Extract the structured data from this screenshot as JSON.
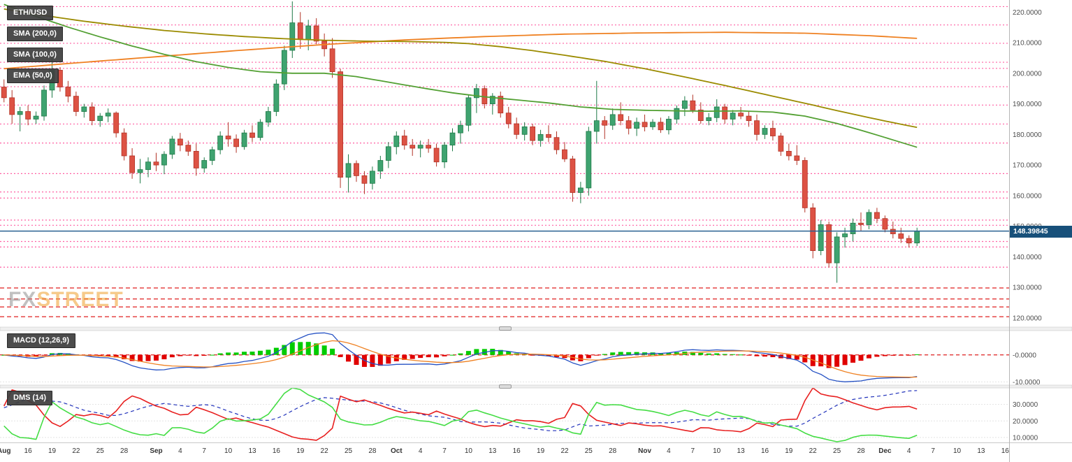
{
  "watermark": {
    "part1": "FX",
    "part2": "STREET"
  },
  "legend": [
    {
      "label": "ETH/USD"
    },
    {
      "label": "SMA (200,0)"
    },
    {
      "label": "SMA (100,0)"
    },
    {
      "label": "EMA (50,0)"
    }
  ],
  "indicator_labels": {
    "macd": "MACD (12,26,9)",
    "dms": "DMS (14)"
  },
  "price_label": "148.39845",
  "colors": {
    "candle_up": "#3fa370",
    "candle_up_border": "#1e7a47",
    "candle_down": "#dd5244",
    "candle_down_border": "#b23326",
    "price_line": "#2a6191",
    "price_label_bg": "#17507a",
    "pivot_pink": "#ff5fa2",
    "support_red": "#e02020"
  },
  "chart_data": [
    {
      "type": "candlestick",
      "symbol": "ETH/USD",
      "current_price": 148.39845,
      "ylim": [
        117,
        223.5
      ],
      "x_slots": 126,
      "y_axis_ticks": [
        "220.0000",
        "210.0000",
        "200.0000",
        "190.0000",
        "180.0000",
        "170.0000",
        "160.0000",
        "150.0000",
        "140.0000",
        "130.0000",
        "120.0000"
      ],
      "x_ticks": [
        [
          0,
          "Aug"
        ],
        [
          3,
          "16"
        ],
        [
          6,
          "19"
        ],
        [
          9,
          "22"
        ],
        [
          12,
          "25"
        ],
        [
          15,
          "28"
        ],
        [
          19,
          "Sep"
        ],
        [
          22,
          "4"
        ],
        [
          25,
          "7"
        ],
        [
          28,
          "10"
        ],
        [
          31,
          "13"
        ],
        [
          34,
          "16"
        ],
        [
          37,
          "19"
        ],
        [
          40,
          "22"
        ],
        [
          43,
          "25"
        ],
        [
          46,
          "28"
        ],
        [
          49,
          "Oct"
        ],
        [
          52,
          "4"
        ],
        [
          55,
          "7"
        ],
        [
          58,
          "10"
        ],
        [
          61,
          "13"
        ],
        [
          64,
          "16"
        ],
        [
          67,
          "19"
        ],
        [
          70,
          "22"
        ],
        [
          73,
          "25"
        ],
        [
          76,
          "28"
        ],
        [
          80,
          "Nov"
        ],
        [
          83,
          "4"
        ],
        [
          86,
          "7"
        ],
        [
          89,
          "10"
        ],
        [
          92,
          "13"
        ],
        [
          95,
          "16"
        ],
        [
          98,
          "19"
        ],
        [
          101,
          "22"
        ],
        [
          104,
          "25"
        ],
        [
          107,
          "28"
        ],
        [
          110,
          "Dec"
        ],
        [
          113,
          "4"
        ],
        [
          116,
          "7"
        ],
        [
          119,
          "10"
        ],
        [
          122,
          "13"
        ],
        [
          125,
          "16"
        ]
      ],
      "candles": [
        [
          195.5,
          198.0,
          190.5,
          192.0
        ],
        [
          192.0,
          194.5,
          183.5,
          186.5
        ],
        [
          186.5,
          189.0,
          181.0,
          187.5
        ],
        [
          187.5,
          189.5,
          183.0,
          185.0
        ],
        [
          185.0,
          187.5,
          183.5,
          186.0
        ],
        [
          186.0,
          196.0,
          184.5,
          194.5
        ],
        [
          194.5,
          205.0,
          192.0,
          201.0
        ],
        [
          201.0,
          202.0,
          194.0,
          195.5
        ],
        [
          195.5,
          197.5,
          190.5,
          192.5
        ],
        [
          192.5,
          194.0,
          186.0,
          187.5
        ],
        [
          187.5,
          190.0,
          185.5,
          189.0
        ],
        [
          189.0,
          190.5,
          183.0,
          184.5
        ],
        [
          184.5,
          187.0,
          182.5,
          186.0
        ],
        [
          186.0,
          188.5,
          184.0,
          187.0
        ],
        [
          187.0,
          187.5,
          179.0,
          180.5
        ],
        [
          180.5,
          182.0,
          171.5,
          173.0
        ],
        [
          173.0,
          175.5,
          165.5,
          167.5
        ],
        [
          167.5,
          172.0,
          164.0,
          168.5
        ],
        [
          168.5,
          172.5,
          166.0,
          171.0
        ],
        [
          171.0,
          174.0,
          168.0,
          170.0
        ],
        [
          170.0,
          174.5,
          167.0,
          173.5
        ],
        [
          173.5,
          179.5,
          172.0,
          178.5
        ],
        [
          178.5,
          180.5,
          174.5,
          176.5
        ],
        [
          176.5,
          178.0,
          173.0,
          174.5
        ],
        [
          174.5,
          177.0,
          166.5,
          169.0
        ],
        [
          169.0,
          172.5,
          167.5,
          171.5
        ],
        [
          171.5,
          176.0,
          170.0,
          175.0
        ],
        [
          175.0,
          181.0,
          173.5,
          179.5
        ],
        [
          179.5,
          184.0,
          176.0,
          178.5
        ],
        [
          178.5,
          180.0,
          174.0,
          176.0
        ],
        [
          176.0,
          181.5,
          175.0,
          180.5
        ],
        [
          180.5,
          183.0,
          177.5,
          179.0
        ],
        [
          179.0,
          185.0,
          178.0,
          184.0
        ],
        [
          184.0,
          189.0,
          182.5,
          187.5
        ],
        [
          187.5,
          198.0,
          186.0,
          196.5
        ],
        [
          196.5,
          209.0,
          194.5,
          207.5
        ],
        [
          207.5,
          223.5,
          205.0,
          216.5
        ],
        [
          216.5,
          220.0,
          208.0,
          211.0
        ],
        [
          211.0,
          217.5,
          207.5,
          215.5
        ],
        [
          215.5,
          218.0,
          209.5,
          210.5
        ],
        [
          210.5,
          213.0,
          205.5,
          208.0
        ],
        [
          208.0,
          211.5,
          198.5,
          200.5
        ],
        [
          200.5,
          201.5,
          162.5,
          166.0
        ],
        [
          166.0,
          173.5,
          161.0,
          170.5
        ],
        [
          170.5,
          171.5,
          164.5,
          166.5
        ],
        [
          166.5,
          168.0,
          160.5,
          164.0
        ],
        [
          164.0,
          169.5,
          162.0,
          168.0
        ],
        [
          168.0,
          173.0,
          165.5,
          171.5
        ],
        [
          171.5,
          177.5,
          169.0,
          176.0
        ],
        [
          176.0,
          181.0,
          173.5,
          179.5
        ],
        [
          179.5,
          181.5,
          175.0,
          176.5
        ],
        [
          176.5,
          178.5,
          173.0,
          175.5
        ],
        [
          175.5,
          178.0,
          172.5,
          176.5
        ],
        [
          176.5,
          178.5,
          174.0,
          175.5
        ],
        [
          175.5,
          177.0,
          169.5,
          171.0
        ],
        [
          171.0,
          177.5,
          169.0,
          176.5
        ],
        [
          176.5,
          182.0,
          174.5,
          180.5
        ],
        [
          180.5,
          184.5,
          177.0,
          183.0
        ],
        [
          183.0,
          193.0,
          181.0,
          192.0
        ],
        [
          192.0,
          196.5,
          187.0,
          195.0
        ],
        [
          195.0,
          196.0,
          188.5,
          190.0
        ],
        [
          190.0,
          193.5,
          186.5,
          192.5
        ],
        [
          192.5,
          194.0,
          185.5,
          187.0
        ],
        [
          187.0,
          189.0,
          182.0,
          183.5
        ],
        [
          183.5,
          185.5,
          178.5,
          180.0
        ],
        [
          180.0,
          184.0,
          178.0,
          182.5
        ],
        [
          182.5,
          183.5,
          176.5,
          178.0
        ],
        [
          178.0,
          181.5,
          176.0,
          180.0
        ],
        [
          180.0,
          183.0,
          177.5,
          179.0
        ],
        [
          179.0,
          181.0,
          173.5,
          175.0
        ],
        [
          175.0,
          177.5,
          171.0,
          172.0
        ],
        [
          172.0,
          173.0,
          158.0,
          161.0
        ],
        [
          161.0,
          164.5,
          157.5,
          162.5
        ],
        [
          162.5,
          182.5,
          160.0,
          181.0
        ],
        [
          181.0,
          197.5,
          177.0,
          184.5
        ],
        [
          184.5,
          186.0,
          178.5,
          183.0
        ],
        [
          183.0,
          188.5,
          181.5,
          186.5
        ],
        [
          186.5,
          190.5,
          183.0,
          184.5
        ],
        [
          184.5,
          186.0,
          180.0,
          182.0
        ],
        [
          182.0,
          185.5,
          179.5,
          184.0
        ],
        [
          184.0,
          186.5,
          181.0,
          182.5
        ],
        [
          182.5,
          185.0,
          181.5,
          184.0
        ],
        [
          184.0,
          185.5,
          180.5,
          181.5
        ],
        [
          181.5,
          186.0,
          180.0,
          185.0
        ],
        [
          185.0,
          189.5,
          183.5,
          188.5
        ],
        [
          188.5,
          192.5,
          186.0,
          191.0
        ],
        [
          191.0,
          193.0,
          187.0,
          188.0
        ],
        [
          188.0,
          190.5,
          183.5,
          184.5
        ],
        [
          184.5,
          187.0,
          183.0,
          185.5
        ],
        [
          185.5,
          191.5,
          184.0,
          189.0
        ],
        [
          189.0,
          190.0,
          183.5,
          185.0
        ],
        [
          185.0,
          188.0,
          183.0,
          187.0
        ],
        [
          187.0,
          189.0,
          185.0,
          186.0
        ],
        [
          186.0,
          187.5,
          182.5,
          184.5
        ],
        [
          184.5,
          186.5,
          178.0,
          180.0
        ],
        [
          180.0,
          183.0,
          178.5,
          182.0
        ],
        [
          182.0,
          184.5,
          178.0,
          179.5
        ],
        [
          179.5,
          180.5,
          173.0,
          174.5
        ],
        [
          174.5,
          177.0,
          171.5,
          173.0
        ],
        [
          173.0,
          176.5,
          170.0,
          171.5
        ],
        [
          171.5,
          172.5,
          154.5,
          156.0
        ],
        [
          156.0,
          157.5,
          139.5,
          142.0
        ],
        [
          142.0,
          152.0,
          140.5,
          150.5
        ],
        [
          150.5,
          151.5,
          136.5,
          138.0
        ],
        [
          138.0,
          148.0,
          131.5,
          146.5
        ],
        [
          146.5,
          149.5,
          143.0,
          147.5
        ],
        [
          147.5,
          152.5,
          145.0,
          151.0
        ],
        [
          151.0,
          154.5,
          148.5,
          150.5
        ],
        [
          150.5,
          155.5,
          149.0,
          154.5
        ],
        [
          154.5,
          156.0,
          151.0,
          152.5
        ],
        [
          152.5,
          153.5,
          148.0,
          149.0
        ],
        [
          149.0,
          151.5,
          146.0,
          147.5
        ],
        [
          147.5,
          149.5,
          144.5,
          146.0
        ],
        [
          146.0,
          147.0,
          143.0,
          144.5
        ],
        [
          144.5,
          149.5,
          143.5,
          148.39845
        ]
      ],
      "overlays": [
        {
          "name": "SMA (200,0)",
          "color": "#ef8122",
          "keypoints": [
            [
              0,
              201.5
            ],
            [
              10,
              203.6
            ],
            [
              20,
              205.6
            ],
            [
              30,
              207.6
            ],
            [
              40,
              209.4
            ],
            [
              50,
              210.9
            ],
            [
              60,
              212.0
            ],
            [
              70,
              212.8
            ],
            [
              80,
              213.2
            ],
            [
              90,
              213.4
            ],
            [
              100,
              213.1
            ],
            [
              108,
              212.3
            ],
            [
              114,
              211.4
            ]
          ]
        },
        {
          "name": "SMA (100,0)",
          "color": "#9b8b00",
          "keypoints": [
            [
              0,
              221.0
            ],
            [
              5,
              218.9
            ],
            [
              10,
              217.0
            ],
            [
              15,
              215.4
            ],
            [
              20,
              214.0
            ],
            [
              25,
              212.9
            ],
            [
              30,
              212.0
            ],
            [
              35,
              211.3
            ],
            [
              40,
              210.8
            ],
            [
              45,
              210.5
            ],
            [
              50,
              210.4
            ],
            [
              55,
              210.1
            ],
            [
              58,
              209.7
            ],
            [
              62,
              208.7
            ],
            [
              66,
              207.4
            ],
            [
              70,
              205.9
            ],
            [
              75,
              203.9
            ],
            [
              80,
              201.5
            ],
            [
              85,
              198.8
            ],
            [
              90,
              196.0
            ],
            [
              95,
              193.1
            ],
            [
              100,
              190.2
            ],
            [
              105,
              187.2
            ],
            [
              110,
              184.4
            ],
            [
              114,
              182.3
            ]
          ]
        },
        {
          "name": "EMA (50,0)",
          "color": "#53a033",
          "keypoints": [
            [
              0,
              222.5
            ],
            [
              4,
              218.6
            ],
            [
              8,
              215.1
            ],
            [
              12,
              211.9
            ],
            [
              16,
              208.9
            ],
            [
              20,
              206.2
            ],
            [
              24,
              203.8
            ],
            [
              28,
              201.9
            ],
            [
              32,
              200.5
            ],
            [
              36,
              200.0
            ],
            [
              40,
              200.0
            ],
            [
              44,
              198.9
            ],
            [
              48,
              197.1
            ],
            [
              52,
              195.3
            ],
            [
              56,
              193.6
            ],
            [
              60,
              192.3
            ],
            [
              64,
              191.3
            ],
            [
              68,
              190.3
            ],
            [
              72,
              189.0
            ],
            [
              76,
              188.2
            ],
            [
              80,
              187.9
            ],
            [
              84,
              187.7
            ],
            [
              88,
              187.6
            ],
            [
              92,
              187.7
            ],
            [
              96,
              187.3
            ],
            [
              100,
              186.0
            ],
            [
              104,
              183.6
            ],
            [
              108,
              180.6
            ],
            [
              111,
              178.2
            ],
            [
              114,
              175.8
            ]
          ]
        }
      ],
      "pivot_levels": {
        "color": "#ff5fa2",
        "values": [
          221.8,
          215.8,
          209.8,
          203.6,
          201.6,
          195.6,
          189.6,
          183.4,
          177.2,
          167.2,
          161.2,
          159.2,
          152.0,
          150.3,
          145.0,
          143.2,
          136.6
        ]
      },
      "support_levels": {
        "color": "#e02020",
        "values": [
          129.8,
          126.2,
          123.6,
          120.4
        ]
      }
    },
    {
      "type": "macd",
      "name": "MACD (12,26,9)",
      "fast": 12,
      "slow": 26,
      "signal": 9,
      "ylim": [
        -11.2,
        9
      ],
      "y_axis_ticks": [
        "-0.0000",
        "-10.0000"
      ],
      "colors": {
        "macd": "#2753c4",
        "signal": "#ef8122",
        "hist_up": "#00cc00",
        "hist_down": "#e00000",
        "zero": "#e02020"
      }
    },
    {
      "type": "dms",
      "name": "DMS (14)",
      "period": 14,
      "ylim": [
        7,
        40
      ],
      "y_axis_ticks": [
        "30.0000",
        "20.0000",
        "10.0000"
      ],
      "colors": {
        "plus_di": "#44dd44",
        "minus_di": "#e82020",
        "adx": "#2233bb"
      }
    }
  ]
}
